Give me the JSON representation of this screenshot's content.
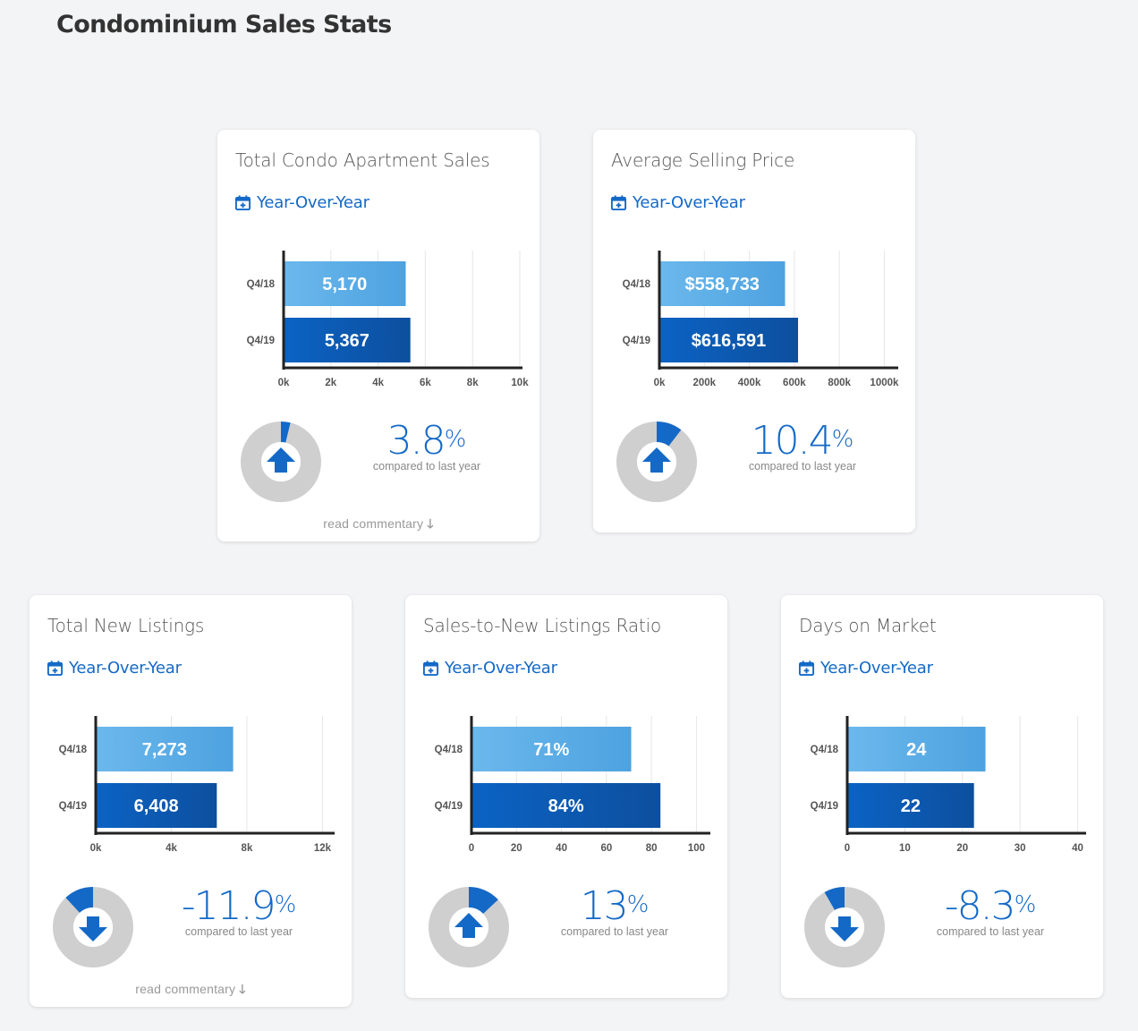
{
  "page": {
    "title": "Condominium Sales Stats"
  },
  "common": {
    "yoy_label": "Year-Over-Year",
    "compared_label": "compared to last year",
    "read_label": "read commentary",
    "percent_symbol": "%"
  },
  "colors": {
    "bar_light": "#5dade6",
    "bar_dark": "#0f5fb8",
    "accent": "#1469c7",
    "donut_bg": "#cfcfcf"
  },
  "cards": [
    {
      "title": "Total Condo Apartment Sales",
      "change_value": "3.8",
      "change_fraction": 0.038,
      "direction": "up",
      "has_commentary": true,
      "chart_data": {
        "type": "bar",
        "orientation": "horizontal",
        "categories": [
          "Q4/18",
          "Q4/19"
        ],
        "values": [
          5170,
          5367
        ],
        "data_labels": [
          "5,170",
          "5,367"
        ],
        "xlim": [
          0,
          10000
        ],
        "ticks": [
          0,
          2000,
          4000,
          6000,
          8000,
          10000
        ],
        "tick_labels": [
          "0k",
          "2k",
          "4k",
          "6k",
          "8k",
          "10k"
        ],
        "grid": true
      }
    },
    {
      "title": "Average Selling Price",
      "change_value": "10.4",
      "change_fraction": 0.104,
      "direction": "up",
      "has_commentary": false,
      "chart_data": {
        "type": "bar",
        "orientation": "horizontal",
        "categories": [
          "Q4/18",
          "Q4/19"
        ],
        "values": [
          558733,
          616591
        ],
        "data_labels": [
          "$558,733",
          "$616,591"
        ],
        "xlim": [
          0,
          1050000
        ],
        "ticks": [
          0,
          200000,
          400000,
          600000,
          800000,
          1000000
        ],
        "tick_labels": [
          "0k",
          "200k",
          "400k",
          "600k",
          "800k",
          "1000k"
        ],
        "grid": true
      }
    },
    {
      "title": "Total New Listings",
      "change_value": "-11.9",
      "change_fraction": 0.119,
      "direction": "down",
      "has_commentary": true,
      "chart_data": {
        "type": "bar",
        "orientation": "horizontal",
        "categories": [
          "Q4/18",
          "Q4/19"
        ],
        "values": [
          7273,
          6408
        ],
        "data_labels": [
          "7,273",
          "6,408"
        ],
        "xlim": [
          0,
          12500
        ],
        "ticks": [
          0,
          4000,
          8000,
          12000
        ],
        "tick_labels": [
          "0k",
          "4k",
          "8k",
          "12k"
        ],
        "grid": true
      }
    },
    {
      "title": "Sales-to-New Listings Ratio",
      "change_value": "13",
      "change_fraction": 0.13,
      "direction": "up",
      "has_commentary": false,
      "chart_data": {
        "type": "bar",
        "orientation": "horizontal",
        "categories": [
          "Q4/18",
          "Q4/19"
        ],
        "values": [
          71,
          84
        ],
        "data_labels": [
          "71%",
          "84%"
        ],
        "xlim": [
          0,
          105
        ],
        "ticks": [
          0,
          20,
          40,
          60,
          80,
          100
        ],
        "tick_labels": [
          "0",
          "20",
          "40",
          "60",
          "80",
          "100"
        ],
        "grid": true
      }
    },
    {
      "title": "Days on Market",
      "change_value": "-8.3",
      "change_fraction": 0.083,
      "direction": "down",
      "has_commentary": false,
      "chart_data": {
        "type": "bar",
        "orientation": "horizontal",
        "categories": [
          "Q4/18",
          "Q4/19"
        ],
        "values": [
          24,
          22
        ],
        "data_labels": [
          "24",
          "22"
        ],
        "xlim": [
          0,
          41
        ],
        "ticks": [
          0,
          10,
          20,
          30,
          40
        ],
        "tick_labels": [
          "0",
          "10",
          "20",
          "30",
          "40"
        ],
        "grid": true
      }
    }
  ]
}
